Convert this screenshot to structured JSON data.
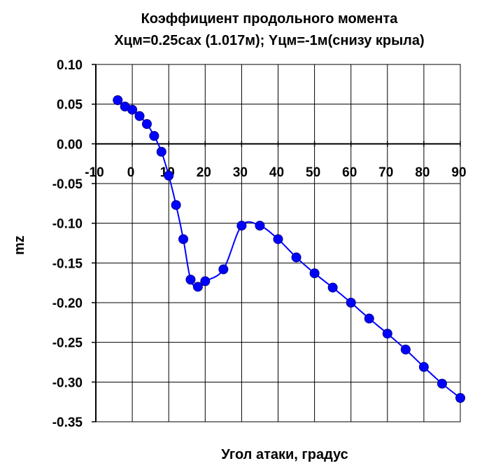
{
  "chart_data": {
    "type": "line",
    "title": "Коэффициент продольного момента",
    "subtitle": "Xцм=0.25сах (1.017м); Yцм=-1м(снизу крыла)",
    "xlabel": "Угол атаки, градус",
    "ylabel": "mz",
    "xlim": [
      -10,
      90
    ],
    "ylim": [
      -0.35,
      0.1
    ],
    "x_ticks": [
      -10,
      0,
      10,
      20,
      30,
      40,
      50,
      60,
      70,
      80,
      90
    ],
    "x_tick_labels": [
      "-10",
      "0",
      "10",
      "20",
      "30",
      "40",
      "50",
      "60",
      "70",
      "80",
      "90"
    ],
    "y_ticks": [
      0.1,
      0.05,
      0.0,
      -0.05,
      -0.1,
      -0.15,
      -0.2,
      -0.25,
      -0.3,
      -0.35
    ],
    "y_tick_labels": [
      "0.10",
      "0.05",
      "0.00",
      "-0.05",
      "-0.10",
      "-0.15",
      "-0.20",
      "-0.25",
      "-0.30",
      "-0.35"
    ],
    "grid": true,
    "legend": "none",
    "series": [
      {
        "color": "#0000ff",
        "marker": "circle",
        "x": [
          -4,
          -2,
          0,
          2,
          4,
          6,
          8,
          10,
          12,
          14,
          16,
          18,
          20,
          25,
          30,
          35,
          40,
          45,
          50,
          55,
          60,
          65,
          70,
          75,
          80,
          85,
          90
        ],
        "y": [
          0.055,
          0.047,
          0.043,
          0.035,
          0.025,
          0.01,
          -0.01,
          -0.04,
          -0.077,
          -0.12,
          -0.171,
          -0.18,
          -0.173,
          -0.158,
          -0.103,
          -0.103,
          -0.12,
          -0.143,
          -0.163,
          -0.181,
          -0.2,
          -0.22,
          -0.239,
          -0.259,
          -0.281,
          -0.302,
          -0.32
        ]
      }
    ]
  }
}
